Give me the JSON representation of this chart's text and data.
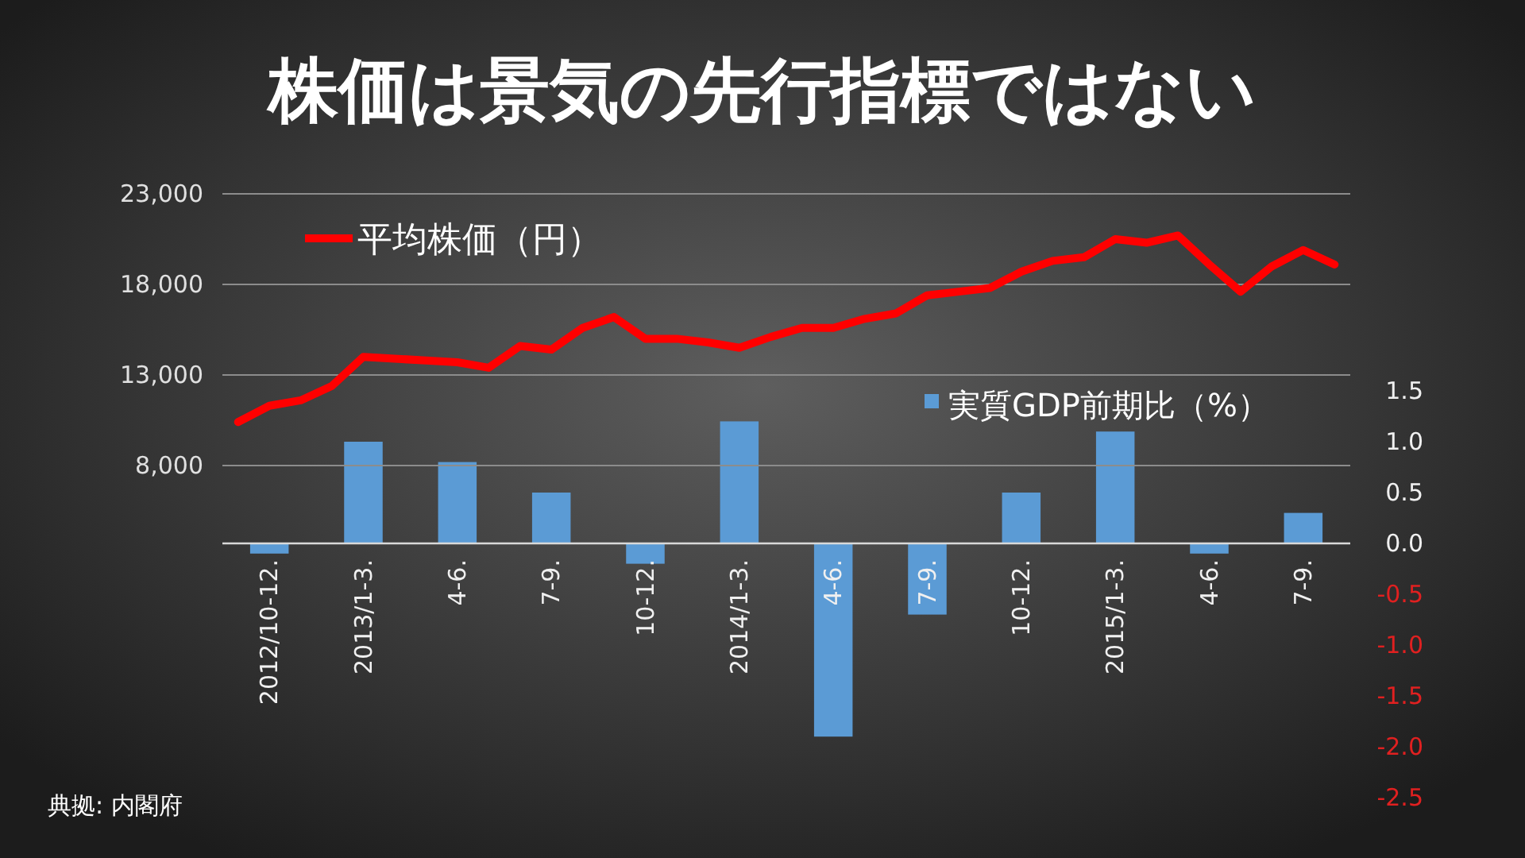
{
  "chart_data": [
    {
      "type": "bar",
      "title": "株価は景気の先行指標ではない",
      "categories": [
        "2012/10-12.",
        "2013/1-3.",
        "4-6.",
        "7-9.",
        "10-12.",
        "2014/1-3.",
        "4-6.",
        "7-9.",
        "10-12.",
        "2015/1-3.",
        "4-6.",
        "7-9."
      ],
      "series": [
        {
          "name": "実質GDP前期比（%）",
          "axis": "y2",
          "color": "#5b9bd5",
          "values": [
            -0.1,
            1.0,
            0.8,
            0.5,
            -0.2,
            1.2,
            -1.9,
            -0.7,
            0.5,
            1.1,
            -0.1,
            0.3
          ]
        }
      ],
      "y2lim": [
        -2.5,
        1.5
      ],
      "y2ticks": [
        1.5,
        {
          "value": 1,
          "label": "1.0"
        },
        0.5,
        {
          "value": 0,
          "label": "0.0"
        },
        -0.5,
        {
          "value": -1,
          "label": "-1.0"
        },
        -1.5,
        {
          "value": -2,
          "label": "-2.0"
        },
        -2.5
      ],
      "legend": "top right",
      "annotations": [
        "典拠: 内閣府"
      ]
    },
    {
      "type": "line",
      "categories": [
        null,
        null,
        null,
        null,
        null,
        null,
        null,
        null,
        null,
        null,
        null,
        null,
        null,
        null,
        null,
        null,
        null,
        null,
        null,
        null,
        null,
        null,
        null,
        null,
        null,
        null,
        null,
        null,
        null,
        null,
        null,
        null,
        null,
        null,
        null,
        null
      ],
      "series": [
        {
          "name": "平均株価（円）",
          "color": "#ff0000",
          "values": [
            10400,
            11300,
            11600,
            12400,
            14000,
            13900,
            13800,
            13700,
            13400,
            14600,
            14400,
            15600,
            16200,
            15000,
            15000,
            14800,
            14500,
            15100,
            15600,
            15600,
            16100,
            16400,
            17400,
            17600,
            17800,
            18700,
            19300,
            19500,
            20500,
            20300,
            20700,
            19100,
            17600,
            19000,
            19900,
            19100
          ]
        }
      ],
      "ylim": [
        8000,
        23000
      ],
      "yticks": [
        {
          "value": 8000,
          "label": "8,000"
        },
        {
          "value": 13000,
          "label": "13,000"
        },
        {
          "value": 18000,
          "label": "18,000"
        },
        {
          "value": 23000,
          "label": "23,000"
        }
      ],
      "tick_labels": "y",
      "grid": "y",
      "legend": "top left"
    }
  ]
}
